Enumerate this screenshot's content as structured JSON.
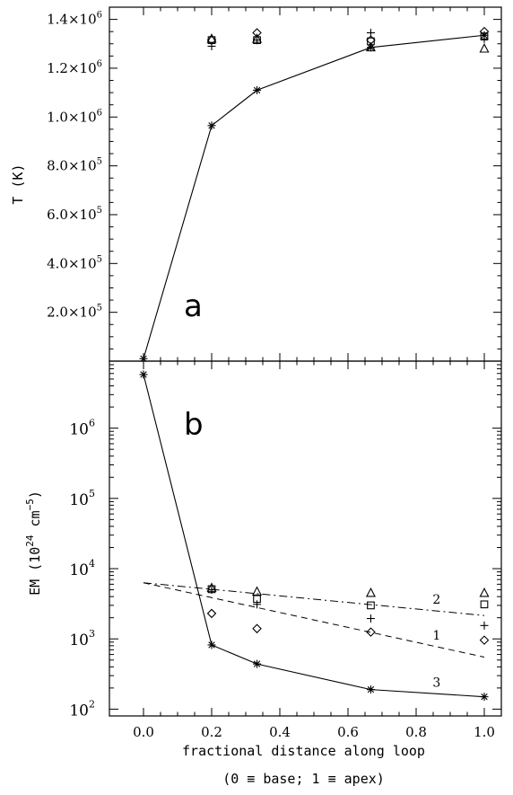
{
  "chart_data": [
    {
      "panel": "a",
      "type": "scatter",
      "ylabel": "T (K)",
      "xlim": [
        -0.1,
        1.05
      ],
      "ylim": [
        0,
        1450000
      ],
      "y_ticks": [
        {
          "value": 200000,
          "mantissa": "2.0×10",
          "exp": "5"
        },
        {
          "value": 400000,
          "mantissa": "4.0×10",
          "exp": "5"
        },
        {
          "value": 600000,
          "mantissa": "6.0×10",
          "exp": "5"
        },
        {
          "value": 800000,
          "mantissa": "8.0×10",
          "exp": "5"
        },
        {
          "value": 1000000,
          "mantissa": "1.0×10",
          "exp": "6"
        },
        {
          "value": 1200000,
          "mantissa": "1.2×10",
          "exp": "6"
        },
        {
          "value": 1400000,
          "mantissa": "1.4×10",
          "exp": "6"
        }
      ],
      "series": [
        {
          "marker": "asterisk",
          "line": "solid",
          "x": [
            0.0,
            0.2,
            0.333,
            0.667,
            1.0
          ],
          "y": [
            10000,
            965000,
            1110000,
            1285000,
            1335000
          ]
        },
        {
          "marker": "plus",
          "x": [
            0.2,
            0.333,
            0.667,
            1.0
          ],
          "y": [
            1290000,
            1315000,
            1345000,
            1320000
          ]
        },
        {
          "marker": "diamond",
          "x": [
            0.2,
            0.333,
            0.667,
            1.0
          ],
          "y": [
            1315000,
            1345000,
            1315000,
            1350000
          ]
        },
        {
          "marker": "square",
          "x": [
            0.2,
            0.333,
            0.667,
            1.0
          ],
          "y": [
            1315000,
            1315000,
            1310000,
            1330000
          ]
        },
        {
          "marker": "triangle",
          "x": [
            0.2,
            0.333,
            0.667,
            1.0
          ],
          "y": [
            1320000,
            1320000,
            1285000,
            1280000
          ]
        }
      ]
    },
    {
      "panel": "b",
      "type": "scatter",
      "ylabel_main": "EM (10",
      "ylabel_exp1": "24",
      "ylabel_mid": " cm",
      "ylabel_exp2": "−5",
      "ylabel_end": ")",
      "xlabel": "fractional distance along loop",
      "xlabel2": "(0 ≡ base; 1 ≡ apex)",
      "x_ticks": [
        "0.0",
        "0.2",
        "0.4",
        "0.6",
        "0.8",
        "1.0"
      ],
      "x_tick_values": [
        0.0,
        0.2,
        0.4,
        0.6,
        0.8,
        1.0
      ],
      "xlim": [
        -0.1,
        1.05
      ],
      "yscale": "log",
      "ylim": [
        80,
        9000000
      ],
      "y_ticks": [
        {
          "value": 100,
          "base": "10",
          "exp": "2"
        },
        {
          "value": 1000,
          "base": "10",
          "exp": "3"
        },
        {
          "value": 10000,
          "base": "10",
          "exp": "4"
        },
        {
          "value": 100000,
          "base": "10",
          "exp": "5"
        },
        {
          "value": 1000000,
          "base": "10",
          "exp": "6"
        }
      ],
      "series": [
        {
          "marker": "asterisk",
          "line": "solid",
          "label": "3",
          "x": [
            0.0,
            0.2,
            0.333,
            0.667,
            1.0
          ],
          "y": [
            5800000,
            820,
            440,
            190,
            150
          ]
        },
        {
          "marker": "triangle",
          "x": [
            0.2,
            0.333,
            0.667,
            1.0
          ],
          "y": [
            5300,
            4700,
            4500,
            4500
          ]
        },
        {
          "marker": "square",
          "x": [
            0.2,
            0.333,
            0.667,
            1.0
          ],
          "y": [
            5100,
            3700,
            3000,
            3100
          ]
        },
        {
          "marker": "plus",
          "x": [
            0.2,
            0.333,
            0.667,
            1.0
          ],
          "y": [
            5000,
            3100,
            1950,
            1550
          ]
        },
        {
          "marker": "diamond",
          "x": [
            0.2,
            0.333,
            0.667,
            1.0
          ],
          "y": [
            2300,
            1400,
            1250,
            960
          ]
        }
      ],
      "fits": [
        {
          "label": "1",
          "style": "dashed",
          "x0": 0.0,
          "y0": 6300,
          "x1": 1.0,
          "y1": 550
        },
        {
          "label": "2",
          "style": "dash-dot",
          "x0": 0.0,
          "y0": 6300,
          "x1": 1.0,
          "y1": 2150
        }
      ]
    }
  ]
}
